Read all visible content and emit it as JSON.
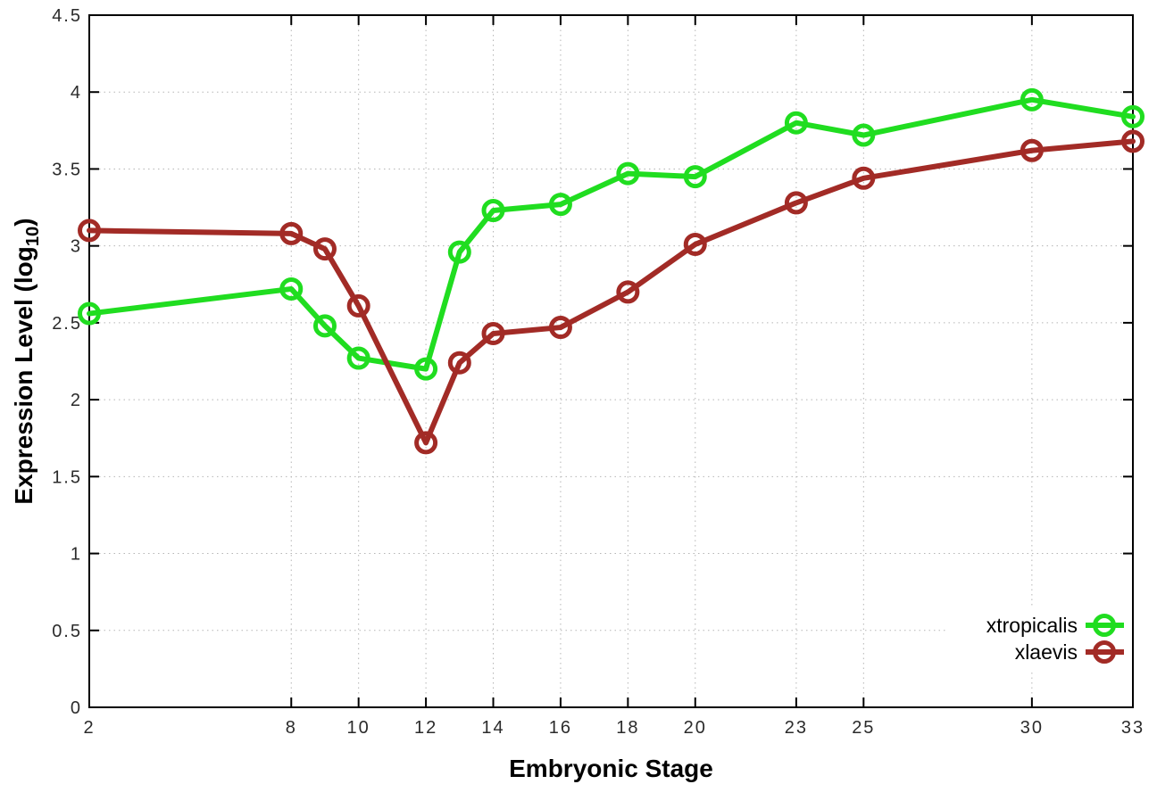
{
  "figure": {
    "background": "#ffffff",
    "border_color": "#000000",
    "grid_color": "#b5b5b5",
    "tick_label_color": "#2b2b2b"
  },
  "chart_data": {
    "type": "line",
    "title": "",
    "xlabel": "Embryonic Stage",
    "ylabel": "Expression Level (log10)",
    "ylabel_parts": {
      "prefix": "Expression Level (log",
      "sub": "10",
      "suffix": ")"
    },
    "xlim": [
      2,
      33
    ],
    "ylim": [
      0,
      4.5
    ],
    "x_ticks": [
      2,
      8,
      10,
      12,
      14,
      16,
      18,
      20,
      23,
      25,
      30,
      33
    ],
    "x_tick_labels": [
      "2",
      "8",
      "10",
      "12",
      "14",
      "16",
      "18",
      "20",
      "23",
      "25",
      "30",
      "33"
    ],
    "y_ticks": [
      0,
      0.5,
      1,
      1.5,
      2,
      2.5,
      3,
      3.5,
      4,
      4.5
    ],
    "y_tick_labels": [
      "0",
      "0.5",
      "1",
      "1.5",
      "2",
      "2.5",
      "3",
      "3.5",
      "4",
      "4.5"
    ],
    "grid": true,
    "legend_position": "inside-bottom-right",
    "legend_opaque": true,
    "x": [
      2,
      8,
      9,
      10,
      12,
      13,
      14,
      16,
      18,
      20,
      23,
      25,
      30,
      33
    ],
    "series": [
      {
        "name": "xtropicalis",
        "color": "#20dd20",
        "marker": "open-circle",
        "values": [
          2.56,
          2.72,
          2.48,
          2.27,
          2.2,
          2.96,
          3.23,
          3.27,
          3.47,
          3.45,
          3.8,
          3.72,
          3.95,
          3.84
        ]
      },
      {
        "name": "xlaevis",
        "color": "#a22b26",
        "marker": "open-circle",
        "values": [
          3.1,
          3.08,
          2.98,
          2.61,
          1.72,
          2.24,
          2.43,
          2.47,
          2.7,
          3.01,
          3.28,
          3.44,
          3.62,
          3.68
        ]
      }
    ]
  }
}
